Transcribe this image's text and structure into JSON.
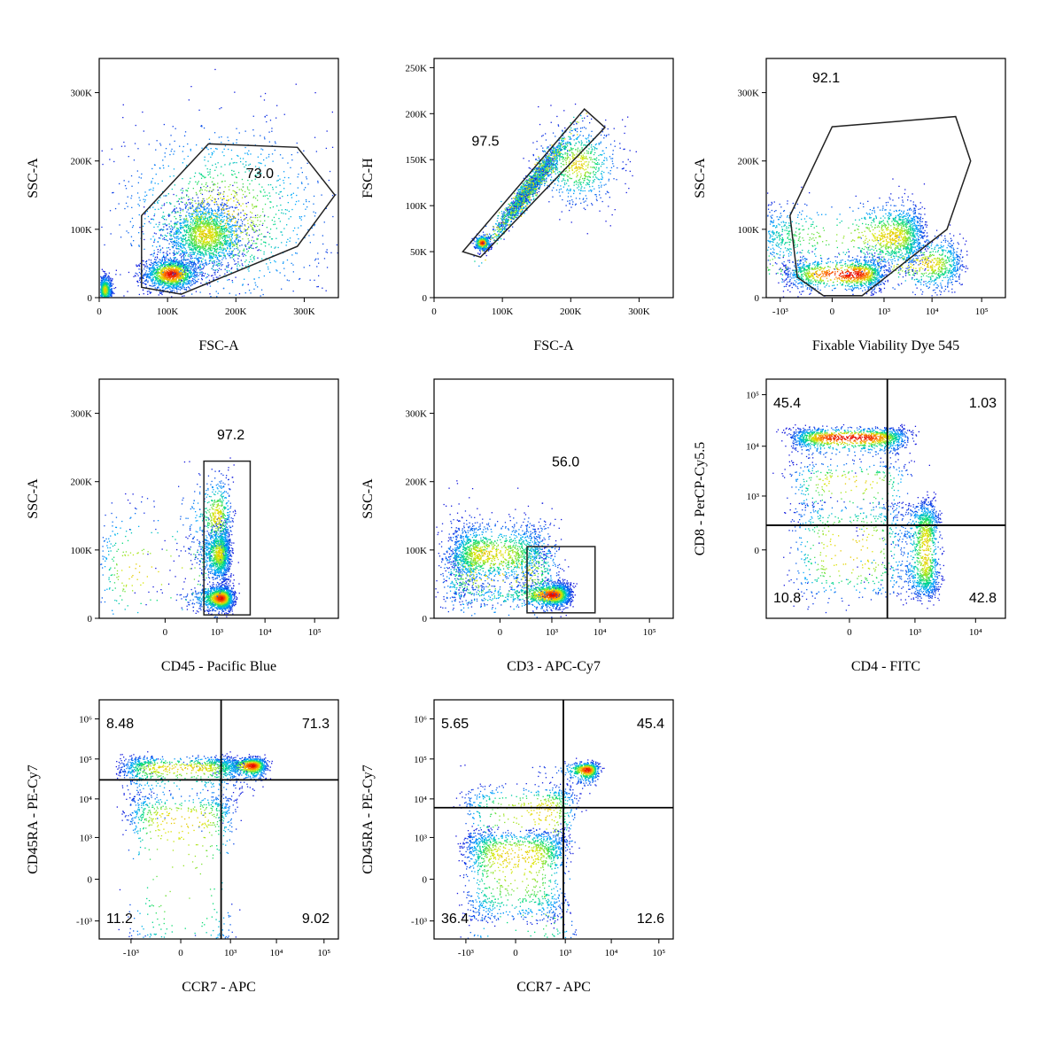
{
  "chart_data": [
    {
      "type": "scatter",
      "xlabel": "FSC-A",
      "ylabel": "SSC-A",
      "x_scale": "linear",
      "y_scale": "linear",
      "xlim": [
        0,
        350000
      ],
      "ylim": [
        0,
        350000
      ],
      "x_ticks": [
        {
          "v": 0,
          "label": "0"
        },
        {
          "v": 100000,
          "label": "100K"
        },
        {
          "v": 200000,
          "label": "200K"
        },
        {
          "v": 300000,
          "label": "300K"
        }
      ],
      "y_ticks": [
        {
          "v": 0,
          "label": "0"
        },
        {
          "v": 100000,
          "label": "100K"
        },
        {
          "v": 200000,
          "label": "200K"
        },
        {
          "v": 300000,
          "label": "300K"
        }
      ],
      "populations": [
        {
          "x": 105000,
          "y": 35000,
          "sx": 20000,
          "sy": 12000,
          "n": 1400
        },
        {
          "x": 155000,
          "y": 92000,
          "sx": 30000,
          "sy": 25000,
          "n": 1800
        },
        {
          "x": 8000,
          "y": 12000,
          "sx": 5000,
          "sy": 10000,
          "n": 700
        },
        {
          "x": 180000,
          "y": 120000,
          "sx": 80000,
          "sy": 70000,
          "n": 1300
        }
      ],
      "gate": {
        "type": "polygon",
        "points": [
          [
            62000,
            120000
          ],
          [
            62000,
            15000
          ],
          [
            120000,
            5000
          ],
          [
            290000,
            75000
          ],
          [
            345000,
            150000
          ],
          [
            290000,
            220000
          ],
          [
            160000,
            225000
          ]
        ]
      },
      "labels": [
        {
          "text": "73.0",
          "x": 215000,
          "y": 175000
        }
      ]
    },
    {
      "type": "scatter",
      "xlabel": "FSC-A",
      "ylabel": "FSC-H",
      "x_scale": "linear",
      "y_scale": "linear",
      "xlim": [
        0,
        350000
      ],
      "ylim": [
        0,
        260000
      ],
      "x_ticks": [
        {
          "v": 0,
          "label": "0"
        },
        {
          "v": 100000,
          "label": "100K"
        },
        {
          "v": 200000,
          "label": "200K"
        },
        {
          "v": 300000,
          "label": "300K"
        }
      ],
      "y_ticks": [
        {
          "v": 0,
          "label": "0"
        },
        {
          "v": 50000,
          "label": "50K"
        },
        {
          "v": 100000,
          "label": "100K"
        },
        {
          "v": 150000,
          "label": "150K"
        },
        {
          "v": 200000,
          "label": "200K"
        },
        {
          "v": 250000,
          "label": "250K"
        }
      ],
      "populations": [
        {
          "x": 70000,
          "y": 60000,
          "sx": 6000,
          "sy": 4000,
          "n": 400
        },
        {
          "x": 140000,
          "y": 120000,
          "sx": 35000,
          "sy": 5000,
          "n": 2200,
          "rot": 0.78
        },
        {
          "x": 210000,
          "y": 145000,
          "sx": 30000,
          "sy": 22000,
          "n": 700
        }
      ],
      "gate": {
        "type": "polygon",
        "points": [
          [
            42000,
            50000
          ],
          [
            220000,
            205000
          ],
          [
            250000,
            185000
          ],
          [
            68000,
            44000
          ]
        ]
      },
      "labels": [
        {
          "text": "97.5",
          "x": 55000,
          "y": 165000
        }
      ]
    },
    {
      "type": "scatter",
      "xlabel": "Fixable Viability Dye 545",
      "ylabel": "SSC-A",
      "x_scale": "biex",
      "y_scale": "linear",
      "xlim": [
        -2000,
        300000
      ],
      "ylim": [
        0,
        350000
      ],
      "x_ticks": [
        {
          "v": -1000,
          "label": "-10³"
        },
        {
          "v": 0,
          "label": "0"
        },
        {
          "v": 1000,
          "label": "10³"
        },
        {
          "v": 10000,
          "label": "10⁴"
        },
        {
          "v": 100000,
          "label": "10⁵"
        }
      ],
      "y_ticks": [
        {
          "v": 0,
          "label": "0"
        },
        {
          "v": 100000,
          "label": "100K"
        },
        {
          "v": 200000,
          "label": "200K"
        },
        {
          "v": 300000,
          "label": "300K"
        }
      ],
      "populations": [
        {
          "x": 150,
          "y": 35000,
          "sx": 400,
          "sy": 12000,
          "n": 1300
        },
        {
          "x": 1500,
          "y": 90000,
          "sx": 2500,
          "sy": 25000,
          "n": 1600
        },
        {
          "x": 8000,
          "y": 50000,
          "sx": 15000,
          "sy": 20000,
          "n": 900
        }
      ],
      "gate": {
        "type": "polygon",
        "points": [
          [
            -600,
            120000
          ],
          [
            -400,
            30000
          ],
          [
            -50,
            3000
          ],
          [
            300,
            3000
          ],
          [
            20000,
            100000
          ],
          [
            60000,
            200000
          ],
          [
            30000,
            265000
          ],
          [
            0,
            250000
          ]
        ]
      },
      "labels": [
        {
          "text": "92.1",
          "x": -150,
          "y": 315000
        }
      ]
    },
    {
      "type": "scatter",
      "xlabel": "CD45 - Pacific Blue",
      "ylabel": "SSC-A",
      "x_scale": "biex",
      "y_scale": "linear",
      "xlim": [
        -2000,
        300000
      ],
      "ylim": [
        0,
        350000
      ],
      "x_ticks": [
        {
          "v": 0,
          "label": "0"
        },
        {
          "v": 1000,
          "label": "10³"
        },
        {
          "v": 10000,
          "label": "10⁴"
        },
        {
          "v": 100000,
          "label": "10⁵"
        }
      ],
      "y_ticks": [
        {
          "v": 0,
          "label": "0"
        },
        {
          "v": 100000,
          "label": "100K"
        },
        {
          "v": 200000,
          "label": "200K"
        },
        {
          "v": 300000,
          "label": "300K"
        }
      ],
      "populations": [
        {
          "x": 1200,
          "y": 30000,
          "sx": 500,
          "sy": 9000,
          "n": 1300
        },
        {
          "x": 1100,
          "y": 95000,
          "sx": 400,
          "sy": 20000,
          "n": 1200
        },
        {
          "x": 1000,
          "y": 150000,
          "sx": 500,
          "sy": 30000,
          "n": 500
        },
        {
          "x": -300,
          "y": 70000,
          "sx": 900,
          "sy": 50000,
          "n": 250
        }
      ],
      "gate": {
        "type": "rect",
        "x0": 500,
        "x1": 5000,
        "y0": 5000,
        "y1": 230000
      },
      "labels": [
        {
          "text": "97.2",
          "x": 1000,
          "y": 262000
        }
      ]
    },
    {
      "type": "scatter",
      "xlabel": "CD3 - APC-Cy7",
      "ylabel": "SSC-A",
      "x_scale": "biex",
      "y_scale": "linear",
      "xlim": [
        -2000,
        300000
      ],
      "ylim": [
        0,
        350000
      ],
      "x_ticks": [
        {
          "v": 0,
          "label": "0"
        },
        {
          "v": 1000,
          "label": "10³"
        },
        {
          "v": 10000,
          "label": "10⁴"
        },
        {
          "v": 100000,
          "label": "10⁵"
        }
      ],
      "y_ticks": [
        {
          "v": 0,
          "label": "0"
        },
        {
          "v": 100000,
          "label": "100K"
        },
        {
          "v": 200000,
          "label": "200K"
        },
        {
          "v": 300000,
          "label": "300K"
        }
      ],
      "populations": [
        {
          "x": 1000,
          "y": 35000,
          "sx": 700,
          "sy": 9000,
          "n": 1500
        },
        {
          "x": -100,
          "y": 95000,
          "sx": 350,
          "sy": 22000,
          "n": 1500
        },
        {
          "x": 0,
          "y": 70000,
          "sx": 700,
          "sy": 40000,
          "n": 700
        }
      ],
      "gate": {
        "type": "rect",
        "x0": 250,
        "x1": 8000,
        "y0": 8000,
        "y1": 105000
      },
      "labels": [
        {
          "text": "56.0",
          "x": 1000,
          "y": 222000
        }
      ]
    },
    {
      "type": "scatter",
      "xlabel": "CD4 - FITC",
      "ylabel": "CD8 - PerCP-Cy5.5",
      "x_scale": "biex",
      "y_scale": "biex",
      "xlim": [
        -2000,
        30000
      ],
      "ylim": [
        -2000,
        200000
      ],
      "x_ticks": [
        {
          "v": 0,
          "label": "0"
        },
        {
          "v": 1000,
          "label": "10³"
        },
        {
          "v": 10000,
          "label": "10⁴"
        }
      ],
      "y_ticks": [
        {
          "v": 0,
          "label": "0"
        },
        {
          "v": 1000,
          "label": "10³"
        },
        {
          "v": 10000,
          "label": "10⁴"
        },
        {
          "v": 100000,
          "label": "10⁵"
        }
      ],
      "populations": [
        {
          "x": 0,
          "y": 15000,
          "sx": 350,
          "sy": 4000,
          "n": 1400
        },
        {
          "x": 1500,
          "y": 0,
          "sx": 500,
          "sy": 350,
          "n": 1300
        },
        {
          "x": 0,
          "y": 0,
          "sx": 350,
          "sy": 350,
          "n": 500
        },
        {
          "x": 0,
          "y": 2000,
          "sx": 400,
          "sy": 1500,
          "n": 300
        }
      ],
      "quadrant": {
        "x": 300,
        "y": 200
      },
      "labels": [
        {
          "text": "45.4",
          "pos": "top-left"
        },
        {
          "text": "1.03",
          "pos": "top-right"
        },
        {
          "text": "10.8",
          "pos": "bottom-left"
        },
        {
          "text": "42.8",
          "pos": "bottom-right"
        }
      ]
    },
    {
      "type": "scatter",
      "xlabel": "CCR7 - APC",
      "ylabel": "CD45RA - PE-Cy7",
      "x_scale": "biex",
      "y_scale": "biex",
      "xlim": [
        -5000,
        200000
      ],
      "ylim": [
        -3000,
        3000000
      ],
      "x_ticks": [
        {
          "v": -1000,
          "label": "-10³"
        },
        {
          "v": 0,
          "label": "0"
        },
        {
          "v": 1000,
          "label": "10³"
        },
        {
          "v": 10000,
          "label": "10⁴"
        },
        {
          "v": 100000,
          "label": "10⁵"
        }
      ],
      "y_ticks": [
        {
          "v": -1000,
          "label": "-10³"
        },
        {
          "v": 0,
          "label": "0"
        },
        {
          "v": 1000,
          "label": "10³"
        },
        {
          "v": 10000,
          "label": "10⁴"
        },
        {
          "v": 100000,
          "label": "10⁵"
        },
        {
          "v": 1000000,
          "label": "10⁶"
        }
      ],
      "populations": [
        {
          "x": 3000,
          "y": 70000,
          "sx": 1500,
          "sy": 20000,
          "n": 900
        },
        {
          "x": 0,
          "y": 60000,
          "sx": 800,
          "sy": 30000,
          "n": 1000
        },
        {
          "x": 0,
          "y": 3000,
          "sx": 600,
          "sy": 5000,
          "n": 700
        }
      ],
      "quadrant": {
        "x": 600,
        "y": 30000
      },
      "labels": [
        {
          "text": "8.48",
          "pos": "top-left"
        },
        {
          "text": "71.3",
          "pos": "top-right"
        },
        {
          "text": "11.2",
          "pos": "bottom-left"
        },
        {
          "text": "9.02",
          "pos": "bottom-right"
        }
      ]
    },
    {
      "type": "scatter",
      "xlabel": "CCR7 - APC",
      "ylabel": "CD45RA - PE-Cy7",
      "x_scale": "biex",
      "y_scale": "biex",
      "xlim": [
        -5000,
        200000
      ],
      "ylim": [
        -3000,
        3000000
      ],
      "x_ticks": [
        {
          "v": -1000,
          "label": "-10³"
        },
        {
          "v": 0,
          "label": "0"
        },
        {
          "v": 1000,
          "label": "10³"
        },
        {
          "v": 10000,
          "label": "10⁴"
        },
        {
          "v": 100000,
          "label": "10⁵"
        }
      ],
      "y_ticks": [
        {
          "v": -1000,
          "label": "-10³"
        },
        {
          "v": 0,
          "label": "0"
        },
        {
          "v": 1000,
          "label": "10³"
        },
        {
          "v": 10000,
          "label": "10⁴"
        },
        {
          "v": 100000,
          "label": "10⁵"
        },
        {
          "v": 1000000,
          "label": "10⁶"
        }
      ],
      "populations": [
        {
          "x": 3000,
          "y": 55000,
          "sx": 1200,
          "sy": 15000,
          "n": 600
        },
        {
          "x": 0,
          "y": 300,
          "sx": 500,
          "sy": 600,
          "n": 1500
        },
        {
          "x": 300,
          "y": 5000,
          "sx": 700,
          "sy": 8000,
          "n": 700
        }
      ],
      "quadrant": {
        "x": 900,
        "y": 6000
      },
      "labels": [
        {
          "text": "5.65",
          "pos": "top-left"
        },
        {
          "text": "45.4",
          "pos": "top-right"
        },
        {
          "text": "36.4",
          "pos": "bottom-left"
        },
        {
          "text": "12.6",
          "pos": "bottom-right"
        }
      ]
    }
  ]
}
